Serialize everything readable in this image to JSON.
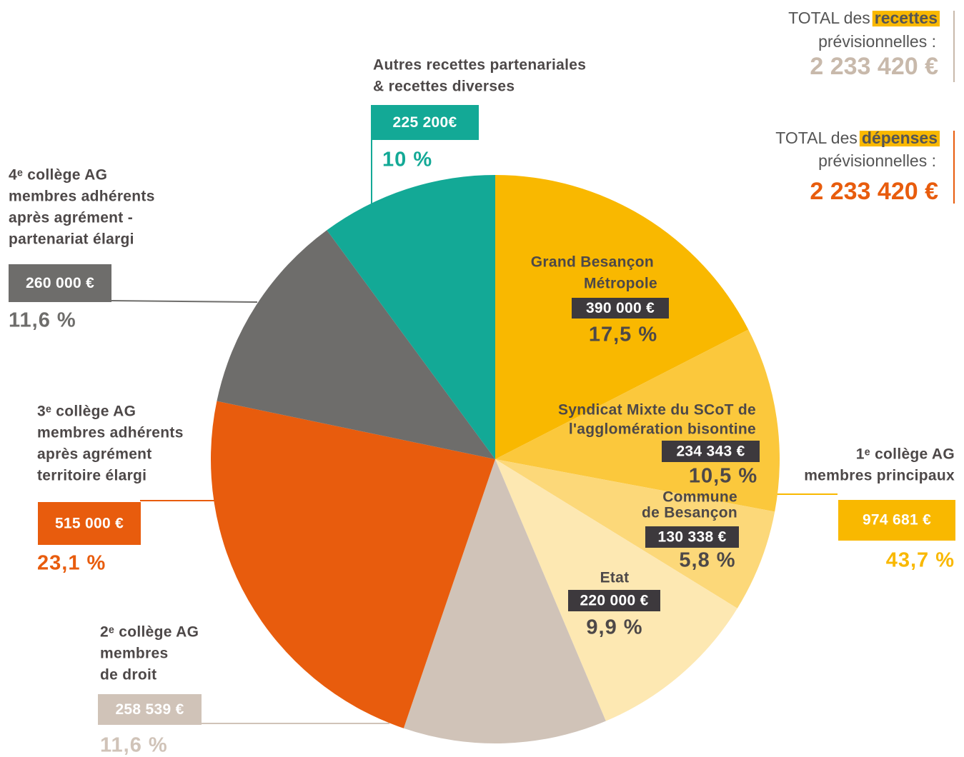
{
  "chart_data": {
    "type": "pie",
    "categories": [
      [
        "Grand Besançon",
        "Métropole"
      ],
      [
        "Syndicat Mixte du SCoT de",
        "l'agglomération bisontine"
      ],
      [
        "Commune",
        "de Besançon"
      ],
      [
        "Etat"
      ],
      [
        "2ᵉ collège AG",
        "membres",
        "de droit"
      ],
      [
        "3ᵉ collège AG",
        "membres adhérents",
        "après agrément",
        "territoire élargi"
      ],
      [
        "4ᵉ collège AG",
        "membres adhérents",
        "après agrément -",
        "partenariat élargi"
      ],
      [
        "Autres recettes partenariales",
        "& recettes diverses"
      ]
    ],
    "values": [
      390000,
      234343,
      130338,
      220000,
      258539,
      515000,
      260000,
      225200
    ],
    "value_labels": [
      "390 000 €",
      "234 343 €",
      "130 338 €",
      "220 000 €",
      "258 539 €",
      "515 000 €",
      "260 000 €",
      "225 200€"
    ],
    "percent_labels": [
      "17,5 %",
      "10,5 %",
      "5,8 %",
      "9,9 %",
      "11,6 %",
      "23,1 %",
      "11,6 %",
      "10 %"
    ],
    "colors": [
      "#f9b800",
      "#fbc83c",
      "#fcd879",
      "#fde8b2",
      "#d0c3b8",
      "#e85c0d",
      "#6e6d6b",
      "#13a996"
    ],
    "group": {
      "label": [
        "1ᵉ collège AG",
        "membres principaux"
      ],
      "amount_label": "974 681 €",
      "percent_label": "43,7 %",
      "color": "#f9b800"
    },
    "totals": [
      {
        "prefix": "TOTAL des",
        "highlight": "recettes",
        "line2": "prévisionnelles :",
        "amount": "2 233 420 €",
        "color": "#c8b9ab"
      },
      {
        "prefix": "TOTAL des",
        "highlight": "dépenses",
        "line2": "prévisionnelles :",
        "amount": "2 233 420 €",
        "color": "#e85c0d"
      }
    ]
  }
}
